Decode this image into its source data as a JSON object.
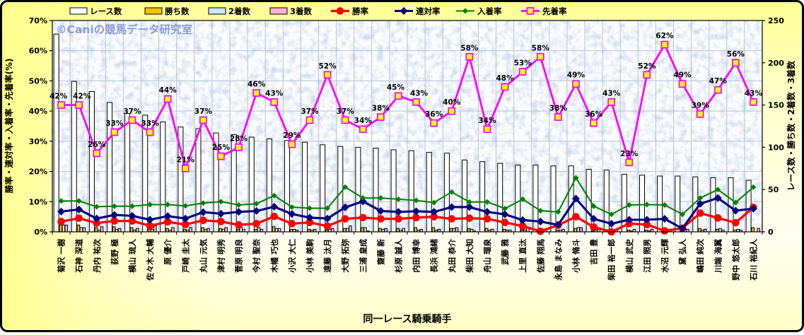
{
  "watermark": "©Caniの競馬データ研究室",
  "x_axis_title": "同一レース騎乗騎手",
  "left_axis": {
    "title": "勝率・連対率・入着率・先着率(%)",
    "min": 0,
    "max": 70,
    "step": 10,
    "suffix": "%"
  },
  "right_axis": {
    "title": "レース数・勝ち数・2着数・3着数",
    "min": 0,
    "max": 250,
    "step": 50
  },
  "chart_data": {
    "type": "bar+line",
    "categories": [
      "菊沢 一樹",
      "石神 深道",
      "丹内 祐次",
      "荻野 極",
      "横山 琉人",
      "佐々木 大輔",
      "原 優介",
      "戸崎 圭太",
      "丸山 元気",
      "津村 明秀",
      "菅原 明良",
      "今村 聖奈",
      "木幡 巧也",
      "小沢 大仁",
      "小林 美駒",
      "遠藤 汰月",
      "大野 拓弥",
      "三浦 皇成",
      "齋藤 新",
      "杉原 誠人",
      "内田 博幸",
      "長浜 鴻緒",
      "丸田 恭介",
      "柴田 大知",
      "舟山 瑠泉",
      "武藤 雅",
      "上里 直汰",
      "佐藤 翔馬",
      "永島 まなみ",
      "小林 脩斗",
      "吉田 豊",
      "柴田 裕一郎",
      "横山 武史",
      "江田 照男",
      "水沼 元輝",
      "黛 弘人",
      "嶋田 純次",
      "川端 海翼",
      "野中 悠太郎",
      "石川 裕紀人"
    ],
    "series": [
      {
        "name": "レース数",
        "kind": "bar",
        "axis": "right",
        "fill": "#ffffff",
        "values": [
          234,
          178,
          166,
          153,
          140,
          138,
          130,
          124,
          122,
          117,
          115,
          112,
          110,
          108,
          106,
          103,
          101,
          100,
          99,
          97,
          96,
          94,
          93,
          85,
          83,
          81,
          79,
          79,
          78,
          78,
          74,
          73,
          68,
          67,
          66,
          66,
          65,
          64,
          64,
          61
        ]
      },
      {
        "name": "勝ち数",
        "kind": "bar",
        "axis": "right",
        "fill": "#ffc000",
        "values": [
          8,
          8,
          5,
          6,
          5,
          3,
          4,
          3,
          5,
          4,
          3,
          3,
          6,
          3,
          3,
          2,
          4,
          5,
          4,
          4,
          5,
          5,
          4,
          4,
          4,
          3,
          2,
          0,
          2,
          4,
          1,
          0,
          2,
          2,
          0,
          1,
          4,
          3,
          2,
          5
        ]
      },
      {
        "name": "2着数",
        "kind": "bar",
        "axis": "right",
        "fill": "#c9e7f4",
        "values": [
          8,
          5,
          2,
          3,
          2,
          3,
          2,
          2,
          3,
          3,
          5,
          5,
          4,
          3,
          2,
          3,
          4,
          5,
          3,
          2,
          2,
          2,
          4,
          3,
          2,
          2,
          2,
          3,
          2,
          5,
          2,
          2,
          1,
          1,
          3,
          0,
          2,
          4,
          3,
          0
        ]
      },
      {
        "name": "3着数",
        "kind": "bar",
        "axis": "right",
        "fill": "#f7b4d4",
        "values": [
          8,
          5,
          6,
          4,
          4,
          7,
          5,
          5,
          4,
          5,
          3,
          3,
          4,
          2,
          3,
          4,
          7,
          1,
          4,
          4,
          3,
          3,
          5,
          1,
          3,
          2,
          5,
          3,
          3,
          5,
          3,
          2,
          3,
          3,
          3,
          3,
          3,
          2,
          2,
          4
        ]
      },
      {
        "name": "勝率",
        "kind": "line",
        "axis": "left",
        "color": "#ff0000",
        "marker": "circle",
        "width": 3.3,
        "values": [
          3.4,
          4.5,
          2.9,
          3.6,
          3.6,
          2.0,
          3.3,
          2.4,
          3.8,
          3.4,
          2.3,
          2.7,
          5.1,
          2.7,
          3.1,
          1.9,
          4.3,
          4.7,
          4.3,
          4.3,
          4.7,
          5.0,
          4.3,
          4.5,
          4.3,
          3.1,
          1.9,
          0.2,
          2.2,
          5.0,
          1.6,
          0.0,
          2.7,
          2.4,
          0.3,
          1.2,
          6.2,
          4.6,
          3.0,
          8.1
        ]
      },
      {
        "name": "連対率",
        "kind": "line",
        "axis": "left",
        "color": "#000080",
        "marker": "diamond",
        "width": 3.1,
        "values": [
          6.7,
          7.4,
          4.4,
          5.6,
          5.3,
          4.0,
          5.2,
          4.4,
          6.5,
          6.0,
          6.6,
          6.9,
          8.3,
          5.9,
          4.7,
          4.4,
          8.1,
          10.1,
          6.9,
          6.6,
          6.8,
          6.6,
          8.2,
          8.2,
          6.6,
          5.8,
          3.9,
          3.4,
          2.3,
          11.0,
          4.3,
          2.7,
          4.0,
          4.0,
          4.3,
          1.1,
          9.3,
          11.2,
          7.0,
          7.7
        ]
      },
      {
        "name": "入着率",
        "kind": "line",
        "axis": "left",
        "color": "#008000",
        "marker": "diamond-small",
        "width": 2,
        "values": [
          10.2,
          10.2,
          8.3,
          8.5,
          8.5,
          9.0,
          9.0,
          8.6,
          9.5,
          10.0,
          8.9,
          9.3,
          12.0,
          8.2,
          7.8,
          7.8,
          14.8,
          11.2,
          11.2,
          10.8,
          10.4,
          9.7,
          13.2,
          9.9,
          9.9,
          7.7,
          10.8,
          7.0,
          6.6,
          17.9,
          8.5,
          5.8,
          8.9,
          9.0,
          8.9,
          5.8,
          11.2,
          14.0,
          9.7,
          14.8
        ]
      },
      {
        "name": "先着率",
        "kind": "line",
        "axis": "left",
        "color": "#ff00ff",
        "marker": "square-yellow",
        "width": 2.8,
        "data_labels": true,
        "label_suffix": "%",
        "values": [
          42,
          42,
          26,
          33,
          37,
          33,
          44,
          21,
          37,
          25,
          28,
          46,
          43,
          29,
          37,
          52,
          37,
          34,
          38,
          45,
          43,
          36,
          40,
          58,
          34,
          48,
          53,
          58,
          38,
          49,
          36,
          43,
          23,
          52,
          62,
          49,
          39,
          47,
          56,
          43
        ]
      }
    ],
    "legend_position": "top",
    "grid": true
  }
}
